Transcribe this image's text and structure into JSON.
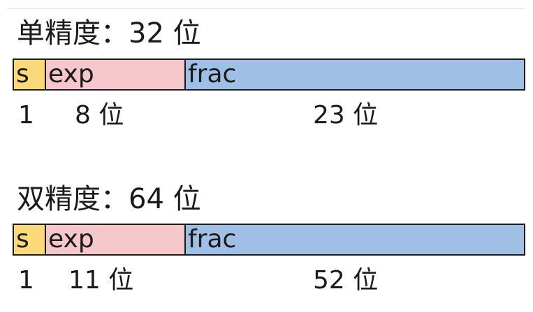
{
  "formats": [
    {
      "title": "单精度：32 位",
      "segments": [
        {
          "label": "s",
          "color": "#f9d97a"
        },
        {
          "label": "exp",
          "color": "#f5c6cb"
        },
        {
          "label": "frac",
          "color": "#a0bfe6"
        }
      ],
      "bit_labels": {
        "sign": "1",
        "exp": "8 位",
        "frac": "23 位"
      }
    },
    {
      "title": "双精度：64 位",
      "segments": [
        {
          "label": "s",
          "color": "#f9d97a"
        },
        {
          "label": "exp",
          "color": "#f5c6cb"
        },
        {
          "label": "frac",
          "color": "#a0bfe6"
        }
      ],
      "bit_labels": {
        "sign": "1",
        "exp": "11 位",
        "frac": "52 位"
      }
    }
  ]
}
